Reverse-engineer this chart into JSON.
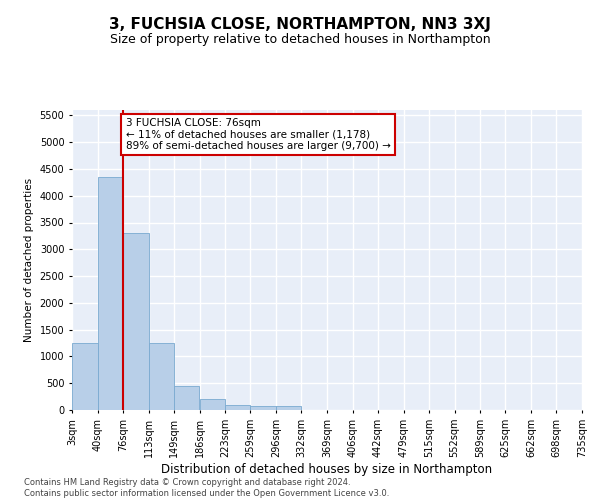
{
  "title": "3, FUCHSIA CLOSE, NORTHAMPTON, NN3 3XJ",
  "subtitle": "Size of property relative to detached houses in Northampton",
  "xlabel": "Distribution of detached houses by size in Northampton",
  "ylabel": "Number of detached properties",
  "footer_line1": "Contains HM Land Registry data © Crown copyright and database right 2024.",
  "footer_line2": "Contains public sector information licensed under the Open Government Licence v3.0.",
  "annotation_title": "3 FUCHSIA CLOSE: 76sqm",
  "annotation_line1": "← 11% of detached houses are smaller (1,178)",
  "annotation_line2": "89% of semi-detached houses are larger (9,700) →",
  "property_sqm": 76,
  "bar_left_edges": [
    3,
    40,
    76,
    113,
    149,
    186,
    223,
    259,
    296,
    332,
    369,
    406,
    442,
    479,
    515,
    552,
    589,
    625,
    662,
    698
  ],
  "bar_widths": [
    37,
    36,
    37,
    36,
    37,
    37,
    36,
    37,
    36,
    37,
    37,
    36,
    37,
    36,
    37,
    37,
    36,
    37,
    36,
    37
  ],
  "bar_heights": [
    1250,
    4350,
    3300,
    1250,
    450,
    200,
    100,
    75,
    75,
    0,
    0,
    0,
    0,
    0,
    0,
    0,
    0,
    0,
    0,
    0
  ],
  "tick_labels": [
    "3sqm",
    "40sqm",
    "76sqm",
    "113sqm",
    "149sqm",
    "186sqm",
    "223sqm",
    "259sqm",
    "296sqm",
    "332sqm",
    "369sqm",
    "406sqm",
    "442sqm",
    "479sqm",
    "515sqm",
    "552sqm",
    "589sqm",
    "625sqm",
    "662sqm",
    "698sqm",
    "735sqm"
  ],
  "bar_color": "#b8cfe8",
  "bar_edge_color": "#7aaad0",
  "vline_color": "#cc0000",
  "vline_x": 76,
  "annotation_box_color": "#cc0000",
  "background_color": "#e8eef8",
  "grid_color": "#ffffff",
  "ylim": [
    0,
    5600
  ],
  "yticks": [
    0,
    500,
    1000,
    1500,
    2000,
    2500,
    3000,
    3500,
    4000,
    4500,
    5000,
    5500
  ],
  "title_fontsize": 11,
  "subtitle_fontsize": 9,
  "xlabel_fontsize": 8.5,
  "ylabel_fontsize": 7.5,
  "tick_fontsize": 7,
  "footer_fontsize": 6,
  "annotation_fontsize": 7.5
}
